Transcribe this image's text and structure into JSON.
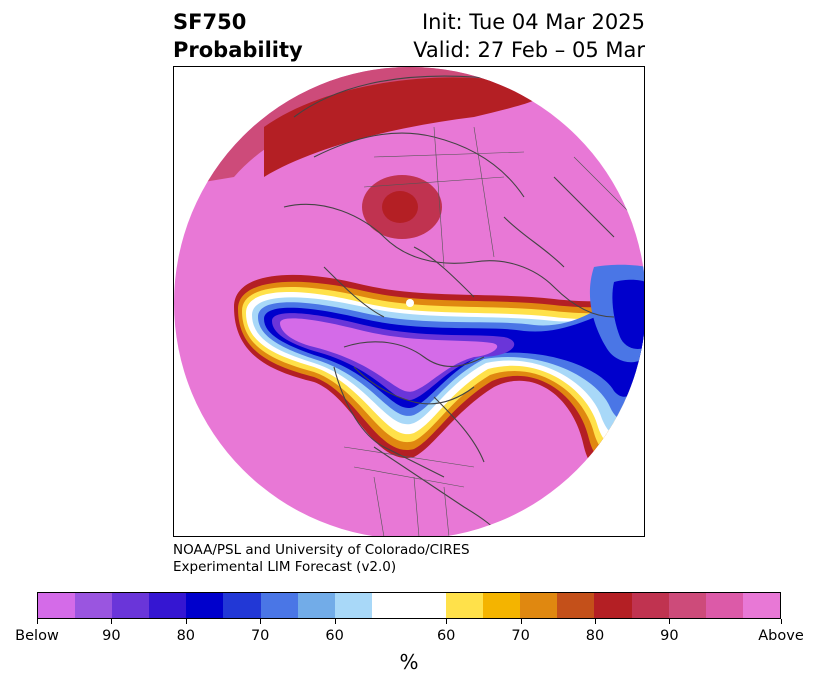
{
  "header": {
    "title_line1": "SF750",
    "title_line2": "Probability",
    "init": "Init: Tue 04 Mar 2025",
    "valid": "Valid: 27 Feb – 05 Mar"
  },
  "credit": {
    "line1": "NOAA/PSL and University of Colorado/CIRES",
    "line2": "Experimental LIM Forecast (v2.0)"
  },
  "colorbar": {
    "unit": "%",
    "colors": [
      "#d46be8",
      "#9a55e0",
      "#6a35d9",
      "#3516d2",
      "#0000cc",
      "#2238d6",
      "#4a76e6",
      "#72ace8",
      "#a8d8f8",
      "#ffffff",
      "#ffe14a",
      "#f4b400",
      "#e08810",
      "#c4501a",
      "#b41f24",
      "#c03350",
      "#cd4b7a",
      "#dc5aa8",
      "#e878d6"
    ],
    "tick_labels": [
      "Below",
      "90",
      "80",
      "70",
      "60",
      "60",
      "70",
      "80",
      "90",
      "Above"
    ]
  },
  "map": {
    "projection": "north-polar-stereographic",
    "colors": {
      "below_core": "#d46be8",
      "below_edge": "#0000cc",
      "above_core": "#e878d6",
      "above_edge": "#b41f24",
      "neutral": "#ffffff",
      "coast": "#444444"
    }
  }
}
